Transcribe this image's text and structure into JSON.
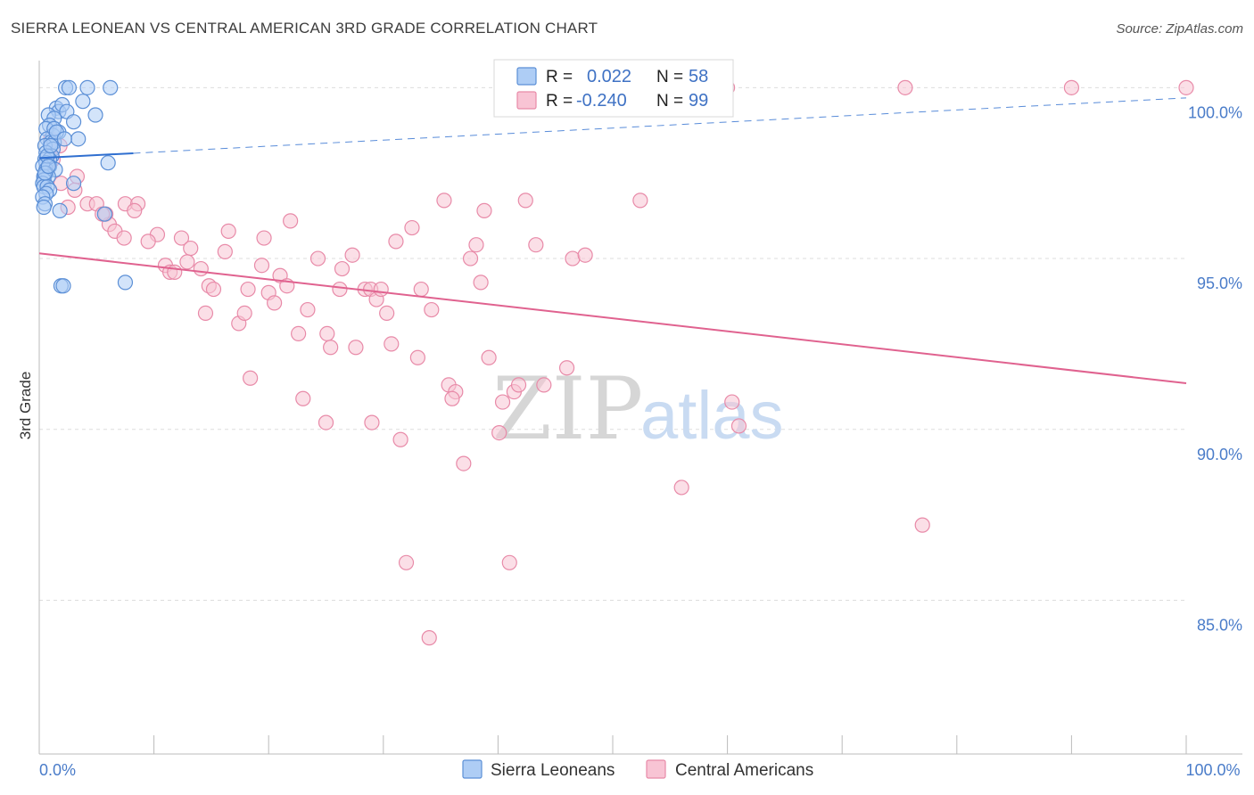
{
  "title": "SIERRA LEONEAN VS CENTRAL AMERICAN 3RD GRADE CORRELATION CHART",
  "source": "Source: ZipAtlas.com",
  "watermark": {
    "zip": "ZIP",
    "atlas": "atlas"
  },
  "colors": {
    "blue_fill": "#aecdf5",
    "blue_stroke": "#5b8fd6",
    "blue_line": "#2f6fd0",
    "pink_fill": "#f8c4d4",
    "pink_stroke": "#e88aa8",
    "pink_line": "#e0628f",
    "grid": "#dddddd",
    "axis_label": "#4a7cc9"
  },
  "legend": {
    "r_label": "R =",
    "n_label": "N =",
    "rows": [
      {
        "series": "blue",
        "r": "0.022",
        "n": "58"
      },
      {
        "series": "pink",
        "r": "-0.240",
        "n": "99"
      }
    ]
  },
  "chart_data": {
    "type": "scatter",
    "title": "SIERRA LEONEAN VS CENTRAL AMERICAN 3RD GRADE CORRELATION CHART",
    "xlabel": "",
    "ylabel": "3rd Grade",
    "xlim": [
      0,
      100
    ],
    "ylim": [
      80.5,
      101.0
    ],
    "x_tick_labels": [
      {
        "value": 0,
        "label": "0.0%"
      },
      {
        "value": 100,
        "label": "100.0%"
      }
    ],
    "y_ticks": [
      {
        "value": 100,
        "label": "100.0%"
      },
      {
        "value": 95,
        "label": "95.0%"
      },
      {
        "value": 90,
        "label": "90.0%"
      },
      {
        "value": 85,
        "label": "85.0%"
      }
    ],
    "grid": true,
    "legend_position": "top-center",
    "series": [
      {
        "name": "Sierra Leoneans",
        "color": "blue",
        "points": [
          [
            2.3,
            100.0
          ],
          [
            2.6,
            100.0
          ],
          [
            6.2,
            100.0
          ],
          [
            4.2,
            100.0
          ],
          [
            3.8,
            99.6
          ],
          [
            1.5,
            99.4
          ],
          [
            1.7,
            99.3
          ],
          [
            2.0,
            99.5
          ],
          [
            2.4,
            99.3
          ],
          [
            0.8,
            99.2
          ],
          [
            1.3,
            99.1
          ],
          [
            4.9,
            99.2
          ],
          [
            3.0,
            99.0
          ],
          [
            0.9,
            98.9
          ],
          [
            1.7,
            98.7
          ],
          [
            0.6,
            98.8
          ],
          [
            1.2,
            98.6
          ],
          [
            0.7,
            98.5
          ],
          [
            1.0,
            98.4
          ],
          [
            1.3,
            98.4
          ],
          [
            0.5,
            98.3
          ],
          [
            3.4,
            98.5
          ],
          [
            1.2,
            98.2
          ],
          [
            0.6,
            98.1
          ],
          [
            1.1,
            98.0
          ],
          [
            0.5,
            97.9
          ],
          [
            0.9,
            97.9
          ],
          [
            0.6,
            97.8
          ],
          [
            0.9,
            97.7
          ],
          [
            0.3,
            97.7
          ],
          [
            0.6,
            97.6
          ],
          [
            1.4,
            97.6
          ],
          [
            0.6,
            97.5
          ],
          [
            0.8,
            97.4
          ],
          [
            0.4,
            97.4
          ],
          [
            0.4,
            97.3
          ],
          [
            0.3,
            97.2
          ],
          [
            0.4,
            97.1
          ],
          [
            0.7,
            97.1
          ],
          [
            0.9,
            97.0
          ],
          [
            3.0,
            97.2
          ],
          [
            0.6,
            96.9
          ],
          [
            0.3,
            96.8
          ],
          [
            0.5,
            96.6
          ],
          [
            0.4,
            96.5
          ],
          [
            1.8,
            96.4
          ],
          [
            5.7,
            96.3
          ],
          [
            1.9,
            94.2
          ],
          [
            2.1,
            94.2
          ],
          [
            7.5,
            94.3
          ],
          [
            0.7,
            98.0
          ],
          [
            1.3,
            98.8
          ],
          [
            0.5,
            97.5
          ],
          [
            1.0,
            98.3
          ],
          [
            0.8,
            97.7
          ],
          [
            1.5,
            98.7
          ],
          [
            2.2,
            98.5
          ],
          [
            6.0,
            97.8
          ]
        ],
        "trend": {
          "x0": 0,
          "y0": 97.94,
          "x1": 8.2,
          "y1": 98.08,
          "dashed_to": [
            100,
            99.7
          ]
        }
      },
      {
        "name": "Central Americans",
        "color": "pink",
        "points": [
          [
            49.0,
            100.0
          ],
          [
            60.0,
            100.0
          ],
          [
            75.5,
            100.0
          ],
          [
            90.0,
            100.0
          ],
          [
            100.0,
            100.0
          ],
          [
            1.0,
            98.5
          ],
          [
            1.8,
            98.3
          ],
          [
            1.2,
            97.9
          ],
          [
            3.3,
            97.4
          ],
          [
            1.9,
            97.2
          ],
          [
            3.1,
            97.0
          ],
          [
            4.2,
            96.6
          ],
          [
            5.0,
            96.6
          ],
          [
            5.8,
            96.3
          ],
          [
            6.1,
            96.0
          ],
          [
            7.5,
            96.6
          ],
          [
            8.6,
            96.6
          ],
          [
            8.3,
            96.4
          ],
          [
            6.6,
            95.8
          ],
          [
            7.4,
            95.6
          ],
          [
            10.3,
            95.7
          ],
          [
            9.5,
            95.5
          ],
          [
            12.4,
            95.6
          ],
          [
            13.2,
            95.3
          ],
          [
            11.0,
            94.8
          ],
          [
            11.4,
            94.6
          ],
          [
            11.8,
            94.6
          ],
          [
            12.9,
            94.9
          ],
          [
            14.1,
            94.7
          ],
          [
            14.8,
            94.2
          ],
          [
            16.2,
            95.2
          ],
          [
            16.5,
            95.8
          ],
          [
            18.2,
            94.1
          ],
          [
            19.4,
            94.8
          ],
          [
            20.0,
            94.0
          ],
          [
            20.5,
            93.7
          ],
          [
            19.6,
            95.6
          ],
          [
            21.0,
            94.5
          ],
          [
            21.6,
            94.2
          ],
          [
            21.9,
            96.1
          ],
          [
            14.5,
            93.4
          ],
          [
            17.4,
            93.1
          ],
          [
            15.2,
            94.1
          ],
          [
            17.9,
            93.4
          ],
          [
            22.6,
            92.8
          ],
          [
            23.4,
            93.5
          ],
          [
            24.3,
            95.0
          ],
          [
            25.1,
            92.8
          ],
          [
            25.4,
            92.4
          ],
          [
            26.2,
            94.1
          ],
          [
            26.4,
            94.7
          ],
          [
            27.3,
            95.1
          ],
          [
            27.6,
            92.4
          ],
          [
            28.4,
            94.1
          ],
          [
            28.9,
            94.1
          ],
          [
            29.4,
            93.8
          ],
          [
            29.8,
            94.1
          ],
          [
            30.3,
            93.4
          ],
          [
            30.7,
            92.5
          ],
          [
            31.1,
            95.5
          ],
          [
            32.5,
            95.9
          ],
          [
            33.0,
            92.1
          ],
          [
            33.3,
            94.1
          ],
          [
            34.2,
            93.5
          ],
          [
            35.3,
            96.7
          ],
          [
            35.7,
            91.3
          ],
          [
            36.3,
            91.1
          ],
          [
            37.6,
            95.0
          ],
          [
            38.1,
            95.4
          ],
          [
            38.8,
            96.4
          ],
          [
            39.2,
            92.1
          ],
          [
            40.1,
            89.9
          ],
          [
            40.4,
            90.8
          ],
          [
            41.4,
            91.1
          ],
          [
            41.8,
            91.3
          ],
          [
            42.4,
            96.7
          ],
          [
            43.3,
            95.4
          ],
          [
            46.5,
            95.0
          ],
          [
            47.6,
            95.1
          ],
          [
            52.4,
            96.7
          ],
          [
            56.0,
            88.3
          ],
          [
            60.4,
            90.8
          ],
          [
            61.0,
            90.1
          ],
          [
            77.0,
            87.2
          ],
          [
            36.0,
            90.9
          ],
          [
            37.0,
            89.0
          ],
          [
            31.5,
            89.7
          ],
          [
            25.0,
            90.2
          ],
          [
            29.0,
            90.2
          ],
          [
            18.4,
            91.5
          ],
          [
            23.0,
            90.9
          ],
          [
            32.0,
            86.1
          ],
          [
            34.0,
            83.9
          ],
          [
            41.0,
            86.1
          ],
          [
            38.5,
            94.3
          ],
          [
            44.0,
            91.3
          ],
          [
            46.0,
            91.8
          ],
          [
            5.5,
            96.3
          ],
          [
            2.5,
            96.5
          ]
        ],
        "trend": {
          "x0": 0,
          "y0": 95.15,
          "x1": 100,
          "y1": 91.35
        }
      }
    ]
  }
}
